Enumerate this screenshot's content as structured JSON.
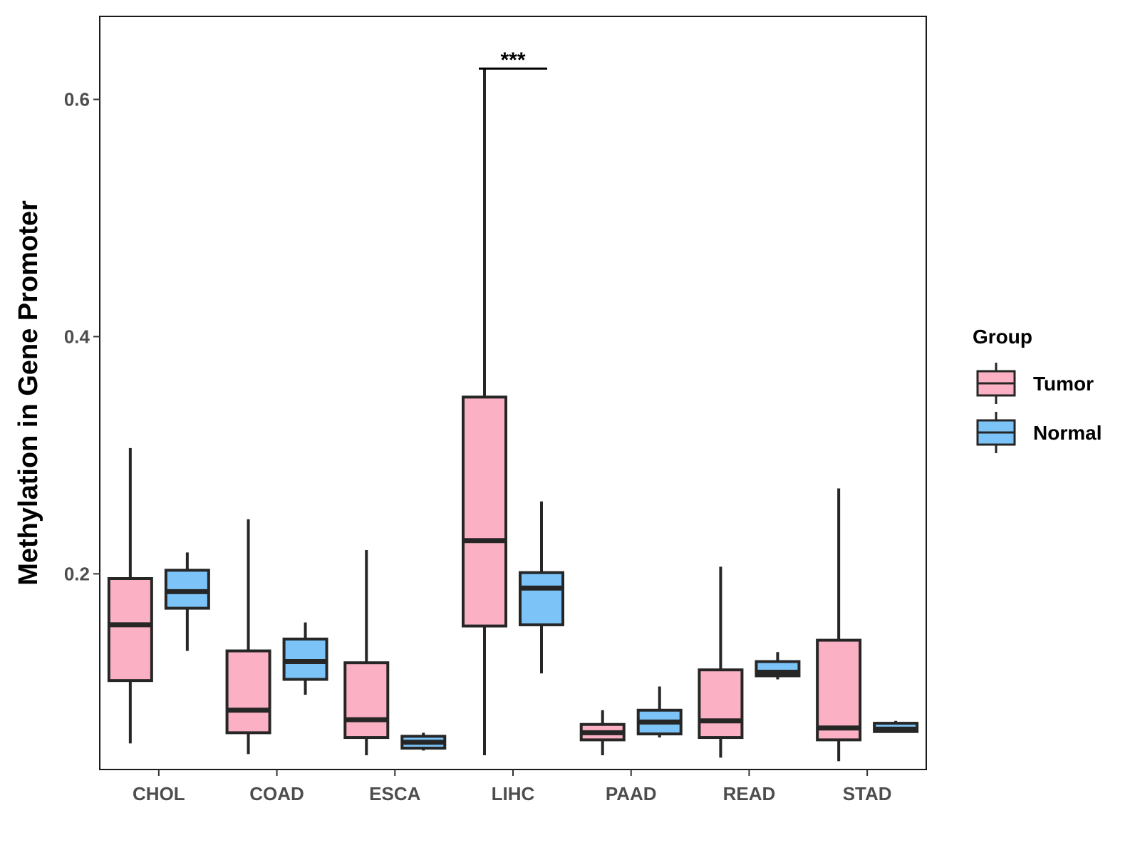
{
  "chart_data": {
    "type": "boxplot",
    "title": "",
    "xlabel": "",
    "ylabel": "Methylation in Gene Promoter",
    "ylim": [
      0.035,
      0.67
    ],
    "yticks": [
      0.2,
      0.4,
      0.6
    ],
    "ytick_labels": [
      "0.2",
      "0.4",
      "0.6"
    ],
    "categories": [
      "CHOL",
      "COAD",
      "ESCA",
      "LIHC",
      "PAAD",
      "READ",
      "STAD"
    ],
    "grid": false,
    "legend": {
      "title": "Group",
      "position": "right",
      "entries": [
        {
          "name": "Tumor",
          "color": "#FBB1C3"
        },
        {
          "name": "Normal",
          "color": "#7CC4F8"
        }
      ]
    },
    "series": [
      {
        "name": "Tumor",
        "color": "#FBB1C3",
        "boxes": [
          {
            "category": "CHOL",
            "min": 0.057,
            "q1": 0.11,
            "median": 0.157,
            "q3": 0.196,
            "max": 0.306
          },
          {
            "category": "COAD",
            "min": 0.048,
            "q1": 0.066,
            "median": 0.085,
            "q3": 0.135,
            "max": 0.246
          },
          {
            "category": "ESCA",
            "min": 0.047,
            "q1": 0.062,
            "median": 0.077,
            "q3": 0.125,
            "max": 0.22
          },
          {
            "category": "LIHC",
            "min": 0.047,
            "q1": 0.156,
            "median": 0.228,
            "q3": 0.349,
            "max": 0.626
          },
          {
            "category": "PAAD",
            "min": 0.047,
            "q1": 0.06,
            "median": 0.066,
            "q3": 0.073,
            "max": 0.085
          },
          {
            "category": "READ",
            "min": 0.045,
            "q1": 0.062,
            "median": 0.076,
            "q3": 0.119,
            "max": 0.206
          },
          {
            "category": "STAD",
            "min": 0.042,
            "q1": 0.06,
            "median": 0.07,
            "q3": 0.144,
            "max": 0.272
          }
        ]
      },
      {
        "name": "Normal",
        "color": "#7CC4F8",
        "boxes": [
          {
            "category": "CHOL",
            "min": 0.135,
            "q1": 0.171,
            "median": 0.185,
            "q3": 0.203,
            "max": 0.218
          },
          {
            "category": "COAD",
            "min": 0.098,
            "q1": 0.111,
            "median": 0.126,
            "q3": 0.145,
            "max": 0.159
          },
          {
            "category": "ESCA",
            "min": 0.051,
            "q1": 0.053,
            "median": 0.058,
            "q3": 0.063,
            "max": 0.066
          },
          {
            "category": "LIHC",
            "min": 0.116,
            "q1": 0.157,
            "median": 0.188,
            "q3": 0.201,
            "max": 0.261
          },
          {
            "category": "PAAD",
            "min": 0.062,
            "q1": 0.065,
            "median": 0.075,
            "q3": 0.085,
            "max": 0.105
          },
          {
            "category": "READ",
            "min": 0.111,
            "q1": 0.114,
            "median": 0.117,
            "q3": 0.126,
            "max": 0.134
          },
          {
            "category": "STAD",
            "min": 0.066,
            "q1": 0.067,
            "median": 0.069,
            "q3": 0.074,
            "max": 0.076
          }
        ]
      }
    ],
    "annotations": [
      {
        "category": "LIHC",
        "text": "***",
        "y": 0.626
      }
    ]
  }
}
